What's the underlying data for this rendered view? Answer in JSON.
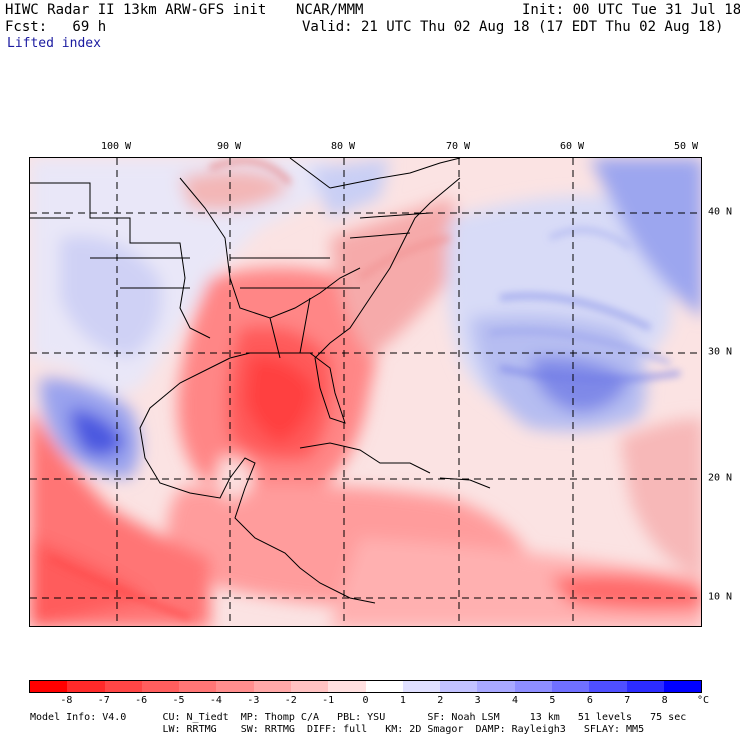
{
  "header": {
    "title": "HIWC Radar II 13km ARW-GFS init",
    "center": "NCAR/MMM",
    "init": "Init: 00 UTC Tue 31 Jul 18",
    "forecast": "Fcst:   69 h",
    "valid": "Valid: 21 UTC Thu 02 Aug 18 (17 EDT Thu 02 Aug 18)",
    "field": "Lifted index"
  },
  "longitude_labels": [
    "100 W",
    "90 W",
    "80 W",
    "70 W",
    "60 W",
    "50 W"
  ],
  "latitude_labels": [
    "40 N",
    "30 N",
    "20 N",
    "10 N"
  ],
  "colorbar": {
    "ticks": [
      "-8",
      "-7",
      "-6",
      "-5",
      "-4",
      "-3",
      "-2",
      "-1",
      "0",
      "1",
      "2",
      "3",
      "4",
      "5",
      "6",
      "7",
      "8"
    ],
    "unit": "°C",
    "colors": [
      "#ff0000",
      "#ff2a2a",
      "#ff4646",
      "#ff5e5e",
      "#ff7676",
      "#ff8e8e",
      "#ffa8a8",
      "#ffc2c2",
      "#ffe0e0",
      "#ffffff",
      "#e0e0ff",
      "#c2c2ff",
      "#a8a8ff",
      "#8e8eff",
      "#7070ff",
      "#4f4fff",
      "#2c2cff",
      "#0000ff"
    ]
  },
  "model_info": {
    "line1": "Model Info: V4.0      CU: N_Tiedt  MP: Thomp C/A   PBL: YSU       SF: Noah LSM     13 km   51 levels   75 sec",
    "line2": "                      LW: RRTMG    SW: RRTMG  DIFF: full   KM: 2D Smagor  DAMP: Rayleigh3   SFLAY: MM5"
  }
}
